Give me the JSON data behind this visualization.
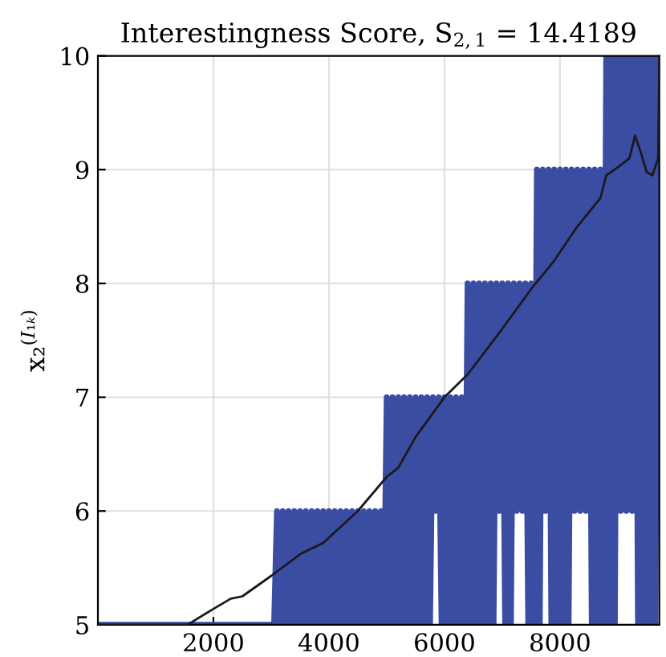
{
  "chart_data": {
    "type": "line",
    "title": "Interestingness Score, S$_{2,1}$ = 14.4189",
    "ylabel": "x₂$^{(I₁ₖ)}$",
    "xlim": [
      0,
      9720
    ],
    "ylim": [
      5,
      10
    ],
    "xticks": [
      2000,
      4000,
      6000,
      8000
    ],
    "yticks": [
      5,
      6,
      7,
      8,
      9,
      10
    ],
    "grid": true,
    "series": [
      {
        "color": "#3b4ca3",
        "x": [
          0,
          3050,
          3100,
          3150,
          3200,
          3250,
          3300,
          3350,
          3400,
          3450,
          3500,
          3550,
          3600,
          3650,
          3700,
          3750,
          3800,
          3850,
          3900,
          3950,
          4000,
          4050,
          4100,
          4150,
          4200,
          4250,
          4300,
          4350,
          4400,
          4450,
          4500,
          4550,
          4600,
          4650,
          4700,
          4750,
          4800,
          4850,
          4900,
          4950,
          5000,
          5050,
          5100,
          5150,
          5200,
          5250,
          5300,
          5350,
          5400,
          5450,
          5500,
          5550,
          5600,
          5650,
          5700,
          5750,
          5800,
          5850,
          5900,
          5950,
          6000,
          6050,
          6100,
          6150,
          6200,
          6250,
          6300,
          6350,
          6400,
          6450,
          6500,
          6550,
          6600,
          6650,
          6700,
          6750,
          6800,
          6850,
          6900,
          6950,
          7000,
          7050,
          7100,
          7150,
          7200,
          7250,
          7300,
          7350,
          7400,
          7450,
          7500,
          7550,
          7600,
          7650,
          7700,
          7750,
          7800,
          7850,
          7900,
          7950,
          8000,
          8050,
          8100,
          8150,
          8200,
          8250,
          8300,
          8350,
          8400,
          8450,
          8500,
          8550,
          8600,
          8650,
          8700,
          8750,
          8800,
          8850,
          8900,
          8950,
          9000,
          9050,
          9100,
          9150,
          9200,
          9250,
          9300,
          9350,
          9400,
          9450,
          9500,
          9550,
          9600,
          9650,
          9700
        ],
        "values": [
          5,
          5,
          6,
          5,
          6,
          5,
          6,
          5,
          6,
          5,
          6,
          5,
          6,
          5,
          6,
          5,
          6,
          5,
          6,
          5,
          6,
          5,
          6,
          5,
          6,
          5,
          6,
          5,
          6,
          5,
          6,
          5,
          6,
          5,
          6,
          5,
          6,
          5,
          6,
          5,
          7,
          5,
          7,
          5,
          7,
          5,
          7,
          5,
          7,
          5,
          7,
          5,
          7,
          5,
          7,
          5,
          7,
          6,
          7,
          5,
          7,
          5,
          7,
          5,
          7,
          5,
          7,
          5,
          8,
          5,
          8,
          5,
          8,
          5,
          8,
          5,
          8,
          5,
          8,
          6,
          8,
          5,
          8,
          5,
          8,
          6,
          8,
          6,
          8,
          5,
          8,
          5,
          9,
          5,
          9,
          6,
          9,
          5,
          9,
          5,
          9,
          5,
          9,
          5,
          9,
          6,
          9,
          6,
          9,
          6,
          9,
          5,
          9,
          5,
          9,
          5,
          10,
          5,
          10,
          5,
          10,
          6,
          10,
          6,
          10,
          6,
          10,
          5,
          10,
          5,
          10,
          5,
          10,
          5,
          10
        ]
      },
      {
        "color": "#1a1a1a",
        "x": [
          0,
          1550,
          2000,
          2300,
          2500,
          3000,
          3500,
          3900,
          4500,
          5000,
          5200,
          5500,
          6000,
          6400,
          7000,
          7500,
          7900,
          8300,
          8700,
          8800,
          9000,
          9200,
          9300,
          9400,
          9500,
          9600,
          9700,
          9720
        ],
        "values": [
          5,
          5,
          5.14,
          5.23,
          5.25,
          5.43,
          5.62,
          5.72,
          6.0,
          6.3,
          6.38,
          6.65,
          7.0,
          7.2,
          7.6,
          7.95,
          8.2,
          8.5,
          8.75,
          8.95,
          9.02,
          9.1,
          9.3,
          9.15,
          8.98,
          8.95,
          9.1,
          10.0
        ]
      }
    ]
  }
}
